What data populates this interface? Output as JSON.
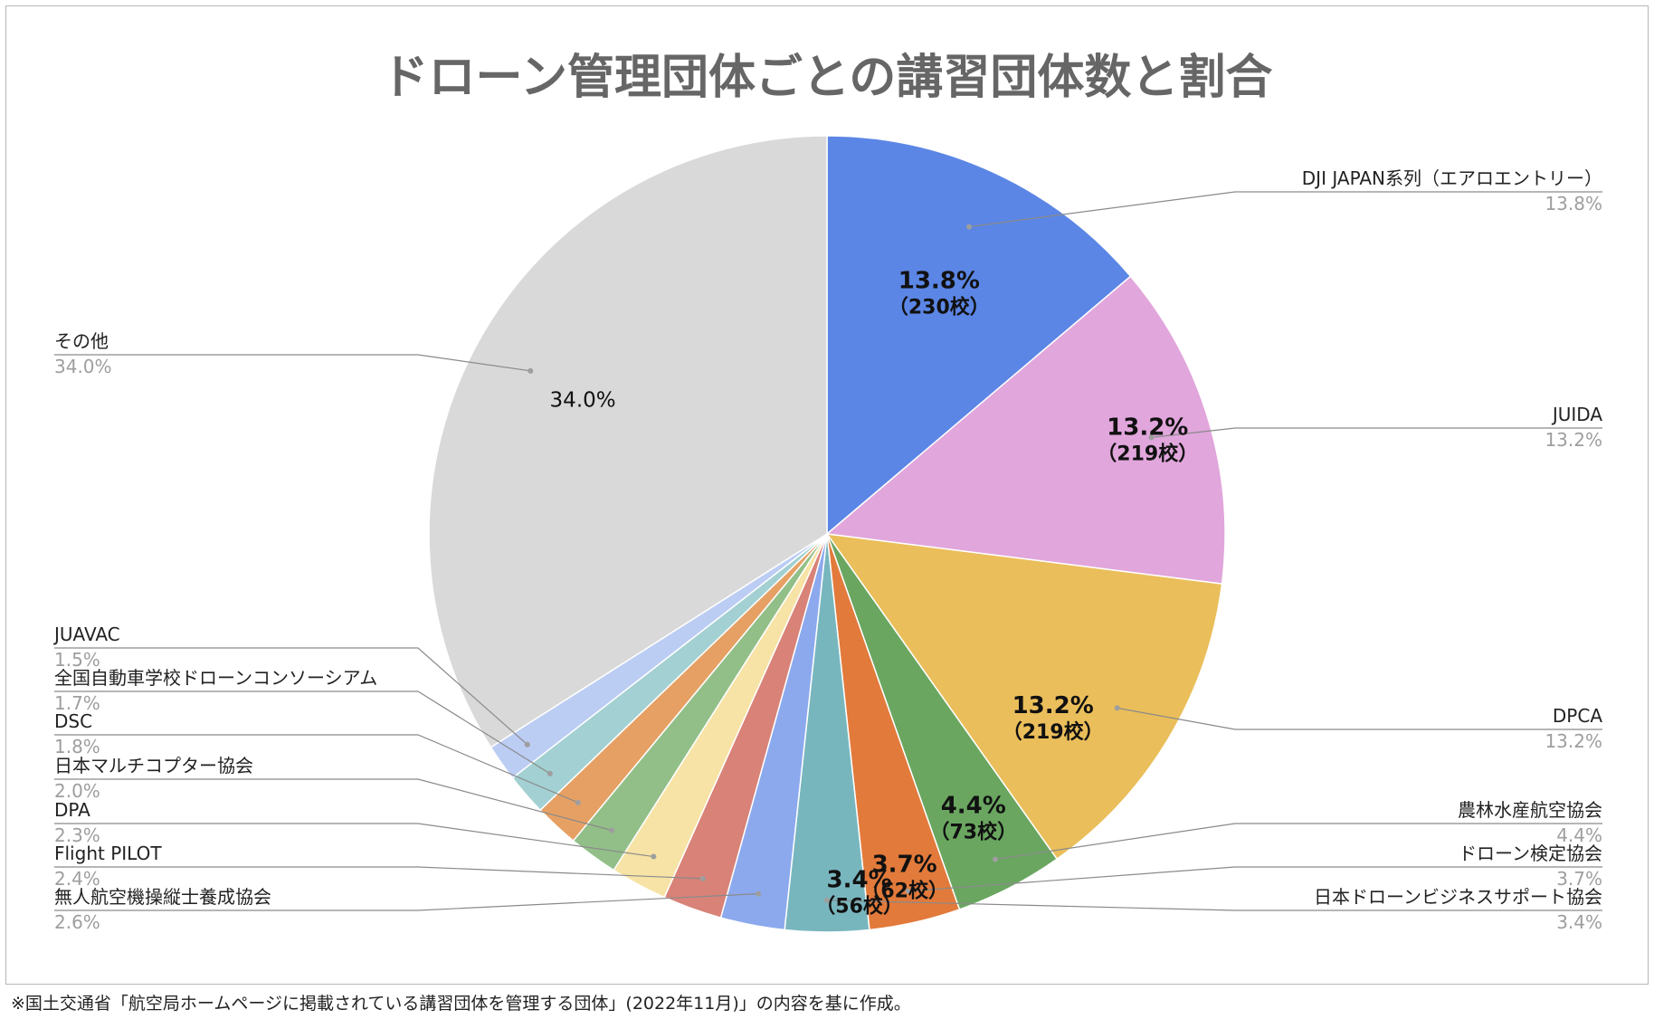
{
  "chart_data": {
    "type": "pie",
    "title": "ドローン管理団体ごとの講習団体数と割合",
    "slices": [
      {
        "name": "DJI JAPAN系列（エアロエントリー）",
        "value": 13.8,
        "pct_label": "13.8%",
        "inner_pct": "13.8%",
        "inner_count": "（230校）",
        "color": "#5b86e5"
      },
      {
        "name": "JUIDA",
        "value": 13.2,
        "pct_label": "13.2%",
        "inner_pct": "13.2%",
        "inner_count": "（219校）",
        "color": "#e1a6dc"
      },
      {
        "name": "DPCA",
        "value": 13.2,
        "pct_label": "13.2%",
        "inner_pct": "13.2%",
        "inner_count": "（219校）",
        "color": "#eabe5a"
      },
      {
        "name": "農林水産航空協会",
        "value": 4.4,
        "pct_label": "4.4%",
        "inner_pct": "4.4%",
        "inner_count": "（73校）",
        "color": "#6aa660"
      },
      {
        "name": "ドローン検定協会",
        "value": 3.7,
        "pct_label": "3.7%",
        "inner_pct": "3.7%",
        "inner_count": "（62校）",
        "color": "#e27a3b"
      },
      {
        "name": "日本ドローンビジネスサポート協会",
        "value": 3.4,
        "pct_label": "3.4%",
        "inner_pct": "3.4%",
        "inner_count": "（56校）",
        "color": "#78b6be"
      },
      {
        "name": "無人航空機操縦士養成協会",
        "value": 2.6,
        "pct_label": "2.6%",
        "color": "#8ca9ee"
      },
      {
        "name": "Flight PILOT",
        "value": 2.4,
        "pct_label": "2.4%",
        "color": "#d88278"
      },
      {
        "name": "DPA",
        "value": 2.3,
        "pct_label": "2.3%",
        "color": "#f7e3a6"
      },
      {
        "name": "日本マルチコプター協会",
        "value": 2.0,
        "pct_label": "2.0%",
        "color": "#92bf88"
      },
      {
        "name": "DSC",
        "value": 1.8,
        "pct_label": "1.8%",
        "color": "#e6a064"
      },
      {
        "name": "全国自動車学校ドローンコンソーシアム",
        "value": 1.7,
        "pct_label": "1.7%",
        "color": "#a3d0d2"
      },
      {
        "name": "JUAVAC",
        "value": 1.5,
        "pct_label": "1.5%",
        "color": "#bccdf4"
      },
      {
        "name": "その他",
        "value": 34.0,
        "pct_label": "34.0%",
        "inner_pct": "34.0%",
        "color": "#d9d9d9"
      }
    ]
  },
  "footnote": "※国土交通省「航空局ホームページに掲載されている講習団体を管理する団体」(2022年11月)」の内容を基に作成。"
}
